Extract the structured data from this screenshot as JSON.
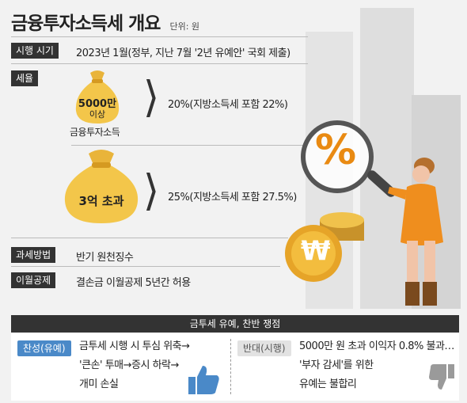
{
  "title": "금융투자소득세 개요",
  "unit": "단위: 원",
  "rows": {
    "implementation": {
      "label": "시행 시기",
      "text": "2023년 1월(정부, 지난 7월 '2년 유예안' 국회 제출)"
    },
    "tax_rate": {
      "label": "세율"
    },
    "method": {
      "label": "과세방법",
      "text": "반기 원천징수"
    },
    "carryover": {
      "label": "이월공제",
      "text": "결손금 이월공제 5년간 허용"
    }
  },
  "tiers": [
    {
      "bag_line1": "5000만",
      "bag_line2": "이상",
      "caption": "금융투자소득",
      "rate": "20%(지방소득세 포함 22%)"
    },
    {
      "bag_line1": "3억 초과",
      "rate": "25%(지방소득세 포함 27.5%)"
    }
  ],
  "illustration": {
    "percent_symbol": "%",
    "coin_symbol": "₩"
  },
  "debate": {
    "header": "금투세 유예, 찬반 쟁점",
    "pro": {
      "label": "찬성(유예)",
      "lines": [
        "금투세 시행 시 투심 위축→",
        "'큰손' 투매→증시 하락→",
        "개미 손실"
      ]
    },
    "con": {
      "label": "반대(시행)",
      "lines": [
        "5000만 원 초과 이익자 0.8% 불과…",
        "'부자 감세'를 위한",
        "유예는 불합리"
      ]
    }
  },
  "colors": {
    "accent_blue": "#4a89c8",
    "accent_orange": "#e98a12",
    "tag_dark": "#333333"
  }
}
